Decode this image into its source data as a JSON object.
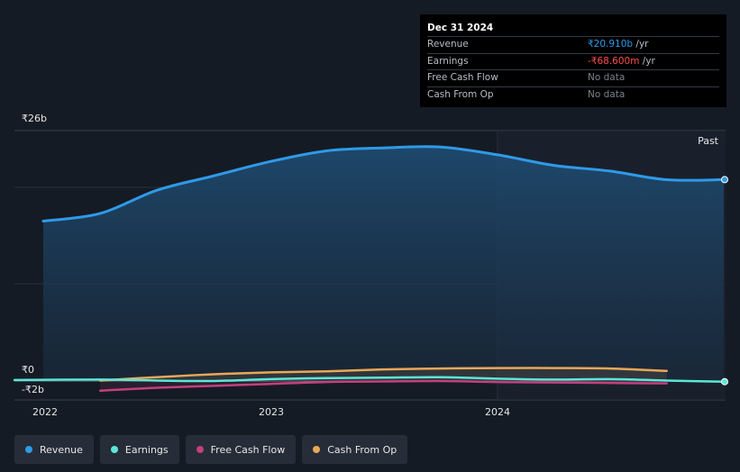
{
  "tooltip": {
    "date": "Dec 31 2024",
    "rows": [
      {
        "label": "Revenue",
        "value": "₹20.910b",
        "unit": " /yr"
      },
      {
        "label": "Earnings",
        "value": "-₹68.600m",
        "unit": " /yr"
      },
      {
        "label": "Free Cash Flow",
        "value": "No data"
      },
      {
        "label": "Cash From Op",
        "value": "No data"
      }
    ]
  },
  "colors": {
    "revenue": "#2f9ae8",
    "earnings": "#5ce6d8",
    "free_cash_flow": "#c2407e",
    "cash_from_op": "#e8a857",
    "background": "#151b24"
  },
  "chart_data": {
    "type": "area",
    "ylim": [
      -2,
      26
    ],
    "y_unit": "₹ billions",
    "y_ticks": [
      {
        "value": 26,
        "label": "₹26b"
      },
      {
        "value": 0,
        "label": "₹0"
      },
      {
        "value": -2,
        "label": "-₹2b"
      }
    ],
    "x_ticks": [
      "2022",
      "2023",
      "2024"
    ],
    "past_label": "Past",
    "legend": [
      "Revenue",
      "Earnings",
      "Free Cash Flow",
      "Cash From Op"
    ],
    "series": [
      {
        "name": "Revenue",
        "x": [
          "2021-12-31",
          "2022-03-31",
          "2022-06-30",
          "2022-09-30",
          "2022-12-31",
          "2023-03-31",
          "2023-06-30",
          "2023-09-30",
          "2023-12-31",
          "2024-03-31",
          "2024-06-30",
          "2024-09-30",
          "2024-12-31"
        ],
        "values": [
          16.6,
          17.4,
          19.8,
          21.3,
          22.8,
          23.9,
          24.2,
          24.3,
          23.5,
          22.4,
          21.8,
          20.9,
          20.91
        ]
      },
      {
        "name": "Earnings",
        "x": [
          "2021-12-31",
          "2022-03-31",
          "2022-06-30",
          "2022-09-30",
          "2022-12-31",
          "2023-03-31",
          "2023-06-30",
          "2023-09-30",
          "2023-12-31",
          "2024-03-31",
          "2024-06-30",
          "2024-09-30",
          "2024-12-31"
        ],
        "values": [
          0.1,
          0.15,
          0.05,
          0.0,
          0.2,
          0.3,
          0.35,
          0.4,
          0.25,
          0.15,
          0.2,
          0.05,
          -0.0686
        ]
      },
      {
        "name": "Free Cash Flow",
        "x": [
          "2022-03-31",
          "2022-06-30",
          "2022-09-30",
          "2022-12-31",
          "2023-03-31",
          "2023-06-30",
          "2023-09-30",
          "2023-12-31",
          "2024-03-31",
          "2024-06-30",
          "2024-09-30"
        ],
        "values": [
          -1.0,
          -0.7,
          -0.5,
          -0.3,
          -0.1,
          -0.05,
          0.0,
          -0.1,
          -0.15,
          -0.2,
          -0.25
        ]
      },
      {
        "name": "Cash From Op",
        "x": [
          "2022-03-31",
          "2022-06-30",
          "2022-09-30",
          "2022-12-31",
          "2023-03-31",
          "2023-06-30",
          "2023-09-30",
          "2023-12-31",
          "2024-03-31",
          "2024-06-30",
          "2024-09-30"
        ],
        "values": [
          0.05,
          0.4,
          0.7,
          0.9,
          1.0,
          1.2,
          1.3,
          1.35,
          1.35,
          1.3,
          1.05
        ]
      }
    ]
  },
  "legend_items": [
    {
      "label": "Revenue",
      "color_key": "revenue"
    },
    {
      "label": "Earnings",
      "color_key": "earnings"
    },
    {
      "label": "Free Cash Flow",
      "color_key": "free_cash_flow"
    },
    {
      "label": "Cash From Op",
      "color_key": "cash_from_op"
    }
  ]
}
